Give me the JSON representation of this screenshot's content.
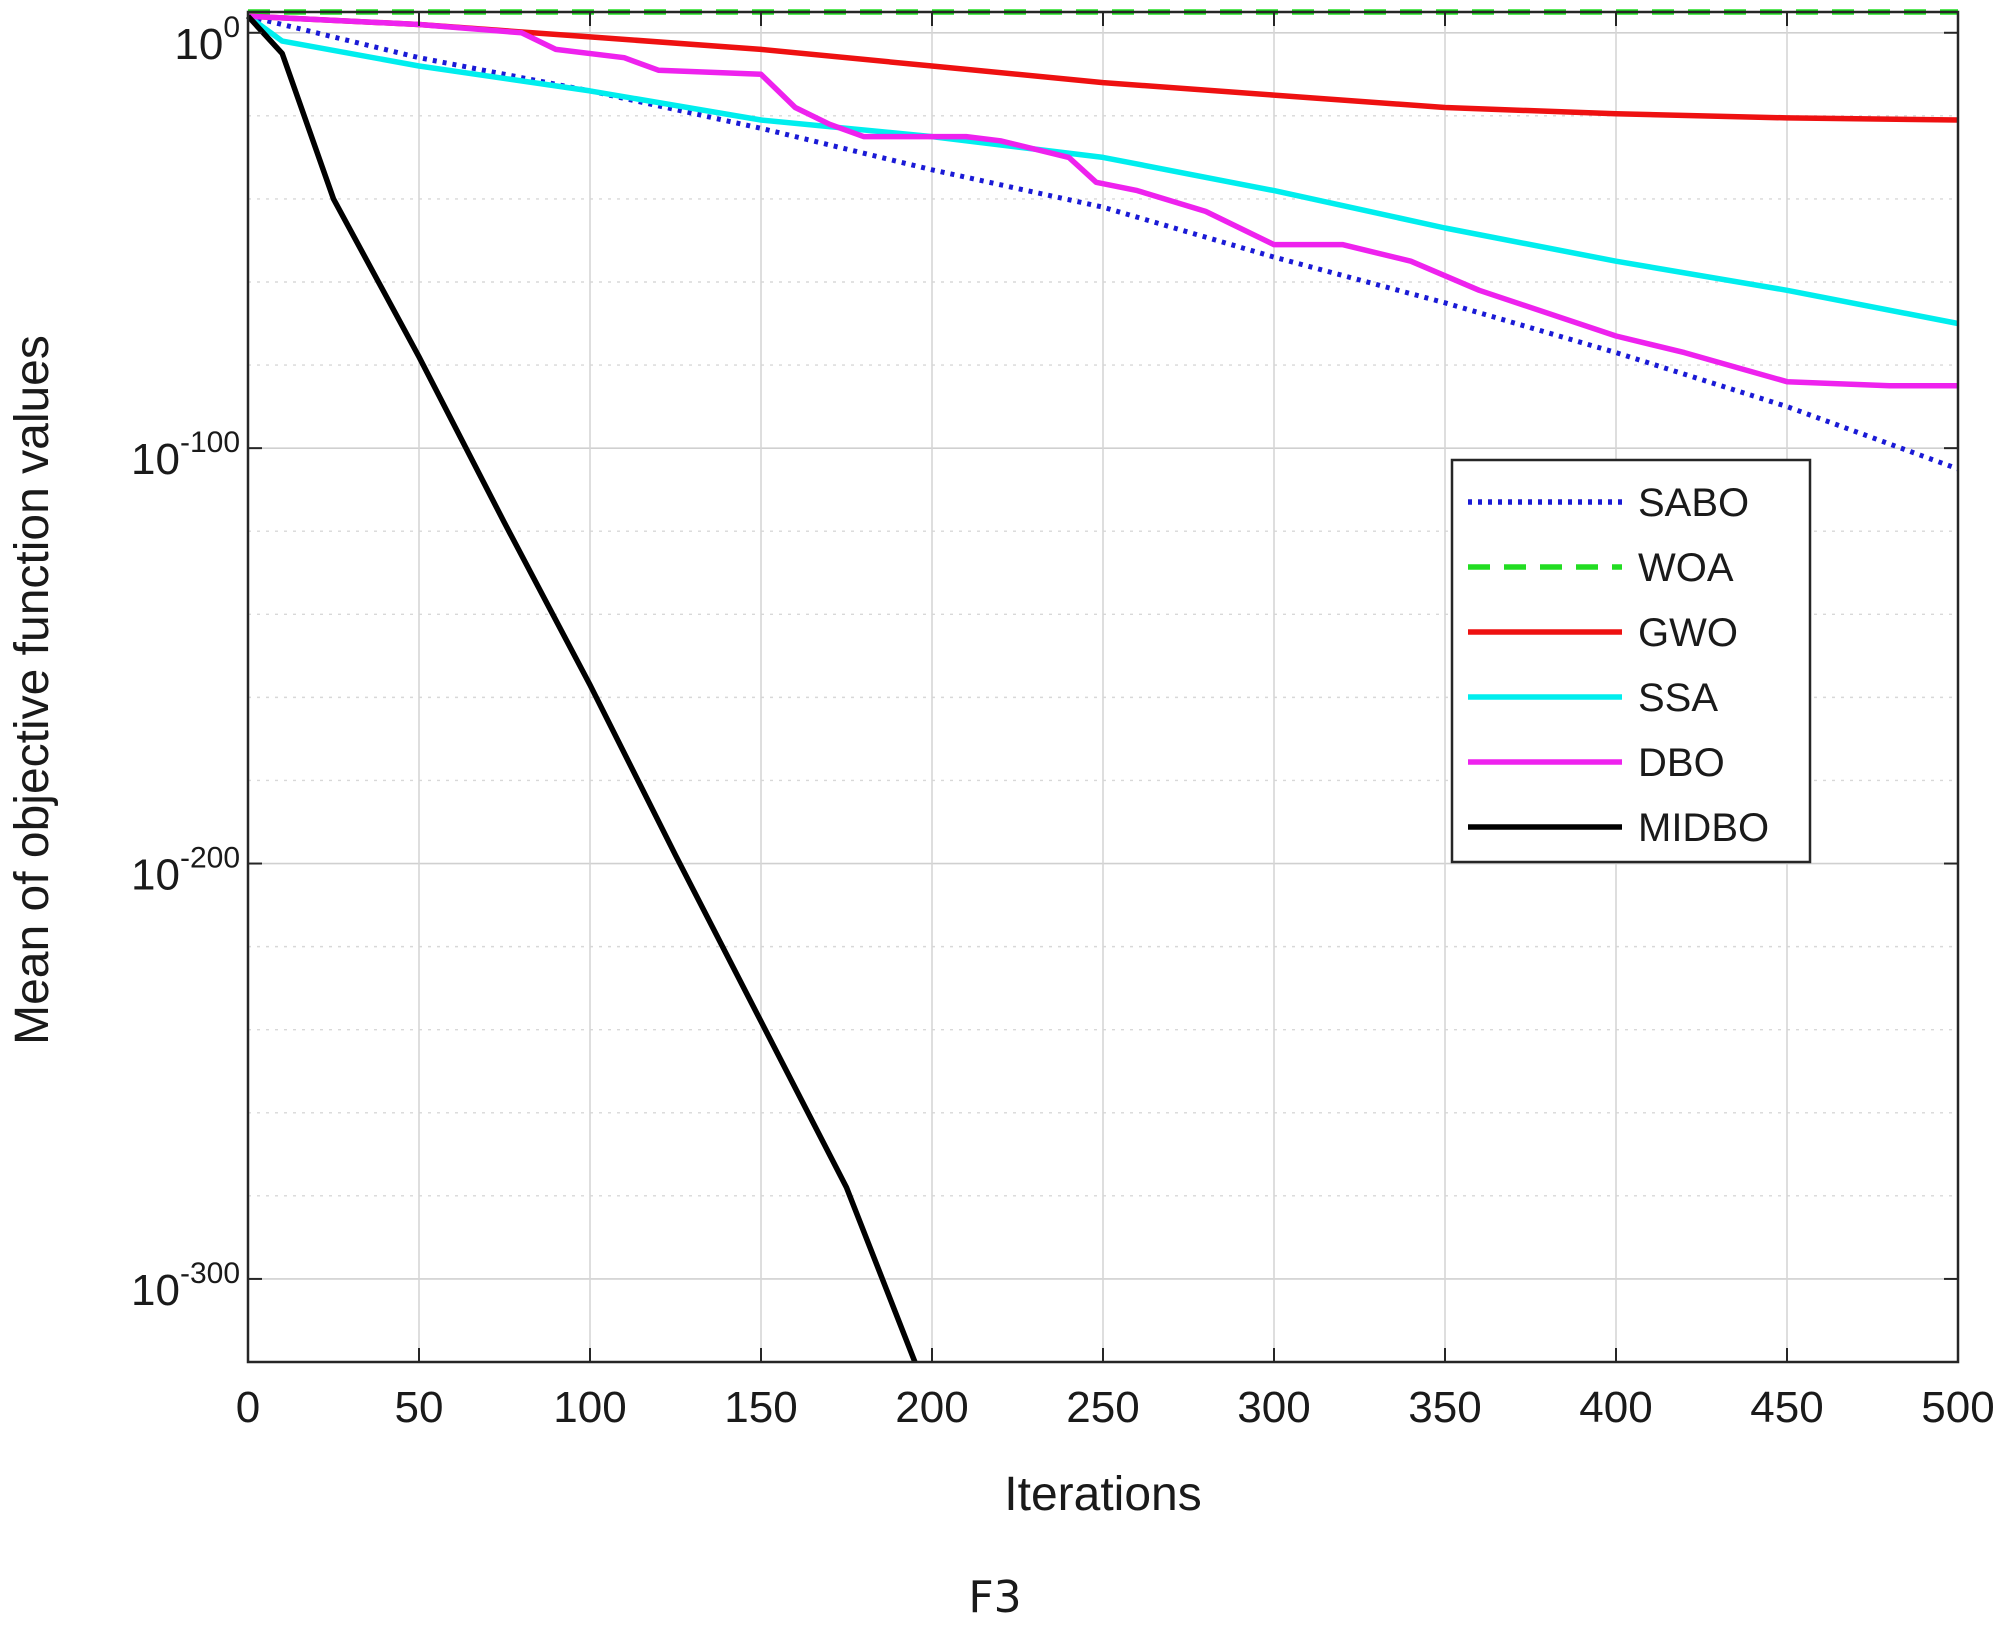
{
  "chart_data": {
    "type": "line",
    "title": "",
    "caption": "F3",
    "xlabel": "Iterations",
    "ylabel": "Mean of objective function values",
    "xlim": [
      0,
      500
    ],
    "ylim_exponent": [
      -320,
      5
    ],
    "yscale": "log",
    "x_ticks": [
      "0",
      "50",
      "100",
      "150",
      "200",
      "250",
      "300",
      "350",
      "400",
      "450",
      "500"
    ],
    "y_ticks": [
      {
        "base": "10",
        "exp": "0"
      },
      {
        "base": "10",
        "exp": "-100"
      },
      {
        "base": "10",
        "exp": "-200"
      },
      {
        "base": "10",
        "exp": "-300"
      }
    ],
    "grid": true,
    "legend_position": "right",
    "series": [
      {
        "name": "SABO",
        "color": "#1a1ad6",
        "dash": "dotted",
        "x": [
          0,
          50,
          100,
          150,
          200,
          250,
          300,
          350,
          400,
          450,
          500
        ],
        "log10_y": [
          4,
          -6,
          -14,
          -23,
          -33,
          -42,
          -54,
          -65,
          -77,
          -90,
          -105
        ]
      },
      {
        "name": "WOA",
        "color": "#22dd22",
        "dash": "dashed",
        "x": [
          0,
          500
        ],
        "log10_y": [
          5,
          5
        ]
      },
      {
        "name": "GWO",
        "color": "#ee1111",
        "dash": "solid",
        "x": [
          0,
          50,
          100,
          150,
          200,
          250,
          300,
          350,
          400,
          450,
          500
        ],
        "log10_y": [
          4,
          2,
          -1,
          -4,
          -8,
          -12,
          -15,
          -18,
          -19.5,
          -20.5,
          -21
        ]
      },
      {
        "name": "SSA",
        "color": "#00eeee",
        "dash": "solid",
        "x": [
          0,
          10,
          50,
          100,
          150,
          200,
          250,
          300,
          350,
          400,
          450,
          500
        ],
        "log10_y": [
          4,
          -2,
          -8,
          -14,
          -21,
          -25,
          -30,
          -38,
          -47,
          -55,
          -62,
          -70
        ]
      },
      {
        "name": "DBO",
        "color": "#ee22ee",
        "dash": "solid",
        "x": [
          0,
          50,
          80,
          90,
          110,
          120,
          150,
          155,
          160,
          170,
          180,
          210,
          220,
          240,
          248,
          260,
          280,
          300,
          320,
          340,
          360,
          400,
          420,
          450,
          480,
          500
        ],
        "log10_y": [
          4,
          2,
          0,
          -4,
          -6,
          -9,
          -10,
          -14,
          -18,
          -22,
          -25,
          -25,
          -26,
          -30,
          -36,
          -38,
          -43,
          -51,
          -51,
          -55,
          -62,
          -73,
          -77,
          -84,
          -85,
          -85
        ]
      },
      {
        "name": "MIDBO",
        "color": "#000000",
        "dash": "solid",
        "x": [
          0,
          10,
          25,
          50,
          75,
          100,
          125,
          150,
          175,
          195
        ],
        "log10_y": [
          4,
          -5,
          -40,
          -78,
          -118,
          -157,
          -198,
          -238,
          -278,
          -320
        ]
      }
    ]
  }
}
